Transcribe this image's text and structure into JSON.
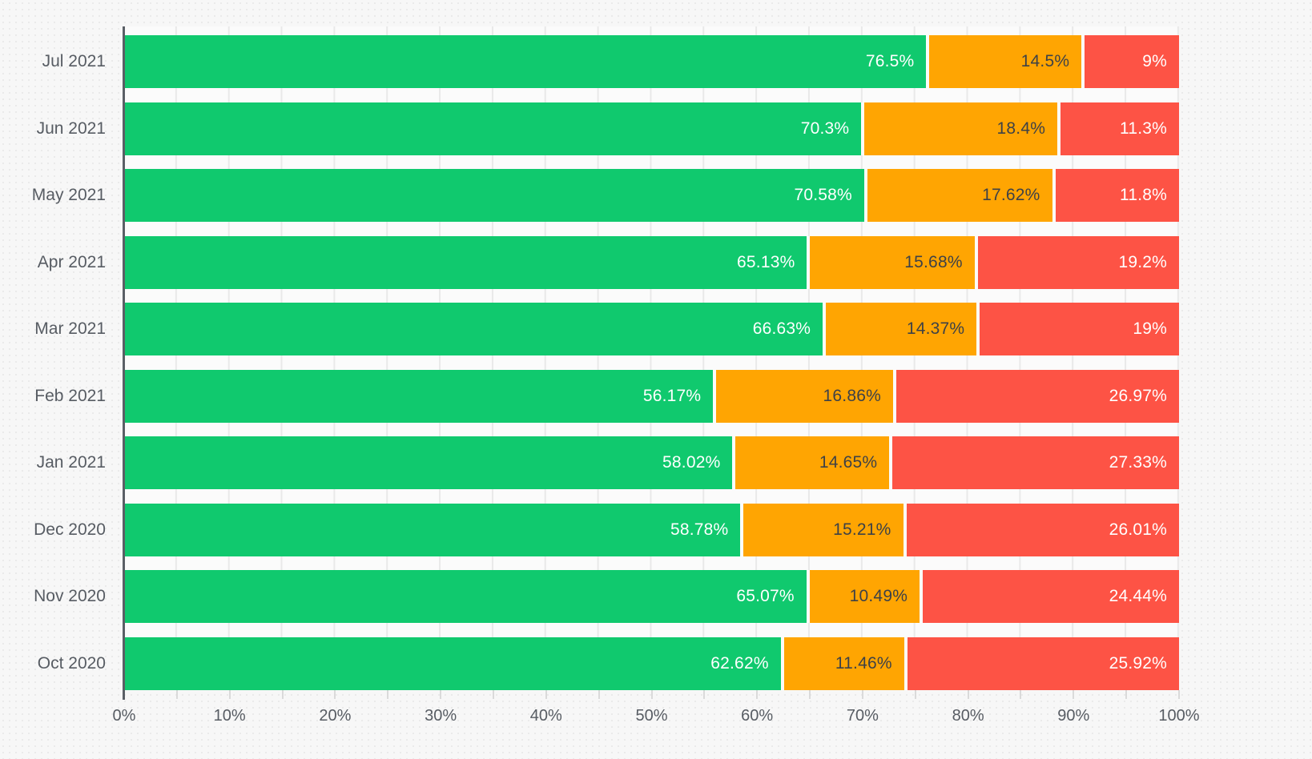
{
  "colors": {
    "page_background": "#f7f7f7",
    "plot_background": "#fbfbfb",
    "gridline": "#e9e9e9",
    "axis_line": "#5a5f66",
    "tick": "#dadada",
    "axis_label": "#575c63",
    "series": {
      "green": "#10c96e",
      "orange": "#ffa502",
      "red": "#fd5345"
    },
    "value_label_on_green": "#ffffff",
    "value_label_on_orange": "#3d4147",
    "value_label_on_red": "#ffffff"
  },
  "chart_data": {
    "type": "bar",
    "orientation": "horizontal",
    "stacked": true,
    "grid": "on",
    "legend": "none",
    "xlabel": "",
    "ylabel": "",
    "x_axis": {
      "min": 0,
      "max": 100,
      "major_tick_step": 10,
      "minor_tick_step": 5,
      "tick_labels": [
        "0%",
        "10%",
        "20%",
        "30%",
        "40%",
        "50%",
        "60%",
        "70%",
        "80%",
        "90%",
        "100%"
      ]
    },
    "categories": [
      "Jul 2021",
      "Jun 2021",
      "May 2021",
      "Apr 2021",
      "Mar 2021",
      "Feb 2021",
      "Jan 2021",
      "Dec 2020",
      "Nov 2020",
      "Oct 2020"
    ],
    "series_order": [
      "green",
      "orange",
      "red"
    ],
    "rows": [
      {
        "category": "Jul 2021",
        "segments": [
          {
            "series": "green",
            "value": 76.5,
            "label": "76.5%"
          },
          {
            "series": "orange",
            "value": 14.5,
            "label": "14.5%"
          },
          {
            "series": "red",
            "value": 9,
            "label": "9%"
          }
        ]
      },
      {
        "category": "Jun 2021",
        "segments": [
          {
            "series": "green",
            "value": 70.3,
            "label": "70.3%"
          },
          {
            "series": "orange",
            "value": 18.4,
            "label": "18.4%"
          },
          {
            "series": "red",
            "value": 11.3,
            "label": "11.3%"
          }
        ]
      },
      {
        "category": "May 2021",
        "segments": [
          {
            "series": "green",
            "value": 70.58,
            "label": "70.58%"
          },
          {
            "series": "orange",
            "value": 17.62,
            "label": "17.62%"
          },
          {
            "series": "red",
            "value": 11.8,
            "label": "11.8%"
          }
        ]
      },
      {
        "category": "Apr 2021",
        "segments": [
          {
            "series": "green",
            "value": 65.13,
            "label": "65.13%"
          },
          {
            "series": "orange",
            "value": 15.68,
            "label": "15.68%"
          },
          {
            "series": "red",
            "value": 19.2,
            "label": "19.2%"
          }
        ]
      },
      {
        "category": "Mar 2021",
        "segments": [
          {
            "series": "green",
            "value": 66.63,
            "label": "66.63%"
          },
          {
            "series": "orange",
            "value": 14.37,
            "label": "14.37%"
          },
          {
            "series": "red",
            "value": 19,
            "label": "19%"
          }
        ]
      },
      {
        "category": "Feb 2021",
        "segments": [
          {
            "series": "green",
            "value": 56.17,
            "label": "56.17%"
          },
          {
            "series": "orange",
            "value": 16.86,
            "label": "16.86%"
          },
          {
            "series": "red",
            "value": 26.97,
            "label": "26.97%"
          }
        ]
      },
      {
        "category": "Jan 2021",
        "segments": [
          {
            "series": "green",
            "value": 58.02,
            "label": "58.02%"
          },
          {
            "series": "orange",
            "value": 14.65,
            "label": "14.65%"
          },
          {
            "series": "red",
            "value": 27.33,
            "label": "27.33%"
          }
        ]
      },
      {
        "category": "Dec 2020",
        "segments": [
          {
            "series": "green",
            "value": 58.78,
            "label": "58.78%"
          },
          {
            "series": "orange",
            "value": 15.21,
            "label": "15.21%"
          },
          {
            "series": "red",
            "value": 26.01,
            "label": "26.01%"
          }
        ]
      },
      {
        "category": "Nov 2020",
        "segments": [
          {
            "series": "green",
            "value": 65.07,
            "label": "65.07%"
          },
          {
            "series": "orange",
            "value": 10.49,
            "label": "10.49%"
          },
          {
            "series": "red",
            "value": 24.44,
            "label": "24.44%"
          }
        ]
      },
      {
        "category": "Oct 2020",
        "segments": [
          {
            "series": "green",
            "value": 62.62,
            "label": "62.62%"
          },
          {
            "series": "orange",
            "value": 11.46,
            "label": "11.46%"
          },
          {
            "series": "red",
            "value": 25.92,
            "label": "25.92%"
          }
        ]
      }
    ]
  }
}
